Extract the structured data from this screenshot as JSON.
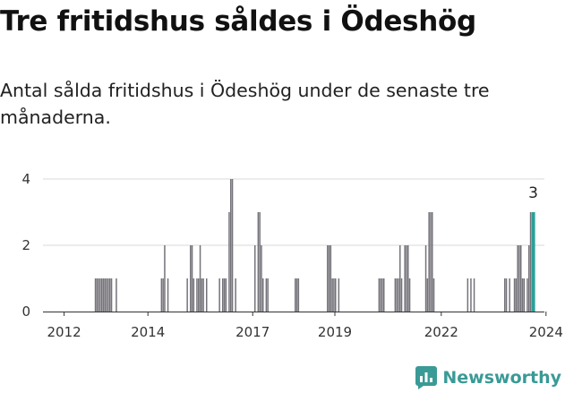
{
  "title": "Tre fritidshus såldes i Ödeshög",
  "subtitle": "Antal sålda fritidshus i Ödeshög under de senaste tre månaderna.",
  "brand": {
    "name": "Newsworthy",
    "color": "#3a9a96"
  },
  "chart_data": {
    "type": "bar",
    "ylim": [
      0,
      4
    ],
    "yticks": [
      0,
      2,
      4
    ],
    "xticks": [
      "2012",
      "2014",
      "2017",
      "2019",
      "2022",
      "2024"
    ],
    "bar_color": "#75737a",
    "highlight_color": "#2aa198",
    "highlight_label": "3",
    "grid": true,
    "values": [
      0,
      0,
      0,
      0,
      0,
      0,
      0,
      0,
      0,
      0,
      0,
      0,
      0,
      0,
      0,
      0,
      0,
      0,
      0,
      0,
      0,
      0,
      0,
      0,
      0,
      0,
      0,
      0,
      0,
      0,
      0,
      1,
      1,
      1,
      1,
      1,
      1,
      1,
      1,
      1,
      1,
      1,
      0,
      0,
      1,
      0,
      0,
      0,
      0,
      0,
      0,
      0,
      0,
      0,
      0,
      0,
      0,
      0,
      0,
      0,
      0,
      0,
      0,
      0,
      0,
      0,
      0,
      0,
      0,
      0,
      0,
      0,
      1,
      1,
      2,
      0,
      1,
      0,
      0,
      0,
      0,
      0,
      0,
      0,
      0,
      0,
      0,
      0,
      1,
      0,
      2,
      2,
      1,
      0,
      1,
      1,
      2,
      1,
      1,
      0,
      1,
      0,
      0,
      0,
      0,
      0,
      0,
      0,
      1,
      0,
      1,
      1,
      1,
      0,
      3,
      4,
      4,
      0,
      1,
      0,
      0,
      0,
      0,
      0,
      0,
      0,
      0,
      0,
      0,
      0,
      2,
      0,
      3,
      3,
      2,
      1,
      0,
      1,
      1,
      0,
      0,
      0,
      0,
      0,
      0,
      0,
      0,
      0,
      0,
      0,
      0,
      0,
      0,
      0,
      0,
      1,
      1,
      1,
      0,
      0,
      0,
      0,
      0,
      0,
      0,
      0,
      0,
      0,
      0,
      0,
      0,
      0,
      0,
      0,
      0,
      2,
      2,
      2,
      1,
      1,
      1,
      0,
      1,
      0,
      0,
      0,
      0,
      0,
      0,
      0,
      0,
      0,
      0,
      0,
      0,
      0,
      0,
      0,
      0,
      0,
      0,
      0,
      0,
      0,
      0,
      0,
      0,
      1,
      1,
      1,
      1,
      0,
      0,
      0,
      0,
      0,
      0,
      1,
      1,
      1,
      2,
      1,
      0,
      2,
      2,
      2,
      1,
      0,
      0,
      0,
      0,
      0,
      0,
      0,
      0,
      0,
      2,
      1,
      3,
      3,
      3,
      1,
      0,
      0,
      0,
      0,
      0,
      0,
      0,
      0,
      0,
      0,
      0,
      0,
      0,
      0,
      0,
      0,
      0,
      0,
      0,
      0,
      1,
      0,
      1,
      0,
      1,
      0,
      0,
      0,
      0,
      0,
      0,
      0,
      0,
      0,
      0,
      0,
      0,
      0,
      0,
      0,
      0,
      0,
      0,
      1,
      1,
      0,
      1,
      0,
      0,
      1,
      1,
      2,
      2,
      2,
      1,
      1,
      0,
      1,
      2,
      3,
      3
    ]
  }
}
